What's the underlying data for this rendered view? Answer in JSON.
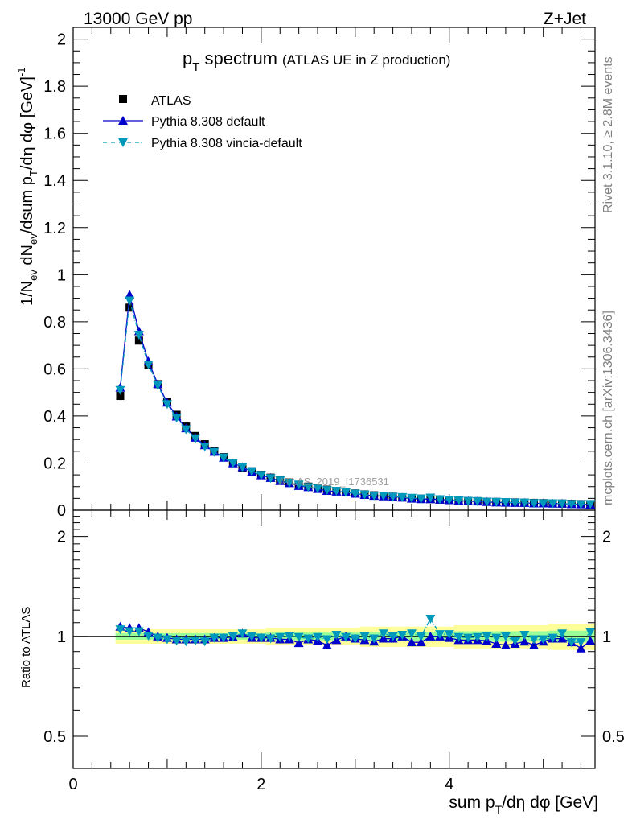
{
  "header": {
    "energy": "13000 GeV pp",
    "process": "Z+Jet"
  },
  "side": {
    "rivet": "Rivet 3.1.10, ≥ 2.8M events",
    "mcplots": "mcplots.cern.ch [arXiv:1306.3436]"
  },
  "watermark": "ATLAS_2019_I1736531",
  "colors": {
    "data": "#000000",
    "default": "#0000cc",
    "vincia": "#0099bb",
    "band_outer": "#ffff99",
    "band_inner": "#99ff99"
  },
  "chart_data": [
    {
      "type": "scatter",
      "title": "p_T spectrum (ATLAS UE in Z production)",
      "title_main": "p",
      "title_sub": "T",
      "title_rest": " spectrum",
      "title_paren": "(ATLAS UE in Z production)",
      "ylabel": "1/N_ev dN_ev/dsum p_T/dη dφ [GeV]^-1",
      "ylim": [
        0,
        2.05
      ],
      "xlim": [
        0,
        5.55
      ],
      "ytick_labels": [
        "0",
        "0.2",
        "0.4",
        "0.6",
        "0.8",
        "1",
        "1.2",
        "1.4",
        "1.6",
        "1.8",
        "2"
      ],
      "legend_position": "top-left",
      "x": [
        0.5,
        0.6,
        0.7,
        0.8,
        0.9,
        1.0,
        1.1,
        1.2,
        1.3,
        1.4,
        1.5,
        1.6,
        1.7,
        1.8,
        1.9,
        2.0,
        2.1,
        2.2,
        2.3,
        2.4,
        2.5,
        2.6,
        2.7,
        2.8,
        2.9,
        3.0,
        3.1,
        3.2,
        3.3,
        3.4,
        3.5,
        3.6,
        3.7,
        3.8,
        3.9,
        4.0,
        4.1,
        4.2,
        4.3,
        4.4,
        4.5,
        4.6,
        4.7,
        4.8,
        4.9,
        5.0,
        5.1,
        5.2,
        5.3,
        5.4,
        5.5
      ],
      "series": [
        {
          "name": "ATLAS",
          "marker": "square",
          "values": [
            0.485,
            0.86,
            0.72,
            0.615,
            0.535,
            0.46,
            0.405,
            0.355,
            0.315,
            0.28,
            0.25,
            0.225,
            0.2,
            0.18,
            0.165,
            0.15,
            0.138,
            0.127,
            0.117,
            0.108,
            0.1,
            0.093,
            0.087,
            0.081,
            0.076,
            0.071,
            0.067,
            0.063,
            0.06,
            0.057,
            0.054,
            0.051,
            0.049,
            0.047,
            0.045,
            0.043,
            0.041,
            0.039,
            0.038,
            0.036,
            0.035,
            0.034,
            0.033,
            0.032,
            0.031,
            0.03,
            0.029,
            0.028,
            0.027,
            0.026,
            0.025
          ]
        },
        {
          "name": "Pythia 8.308 default",
          "marker": "triangle-up",
          "values": [
            0.52,
            0.915,
            0.76,
            0.632,
            0.536,
            0.457,
            0.398,
            0.348,
            0.308,
            0.276,
            0.248,
            0.223,
            0.199,
            0.183,
            0.163,
            0.148,
            0.137,
            0.124,
            0.115,
            0.103,
            0.098,
            0.09,
            0.082,
            0.079,
            0.076,
            0.07,
            0.065,
            0.061,
            0.059,
            0.056,
            0.054,
            0.049,
            0.047,
            0.047,
            0.045,
            0.043,
            0.04,
            0.038,
            0.037,
            0.035,
            0.033,
            0.032,
            0.031,
            0.031,
            0.029,
            0.029,
            0.028,
            0.028,
            0.026,
            0.025,
            0.024
          ]
        },
        {
          "name": "Pythia 8.308 vincia-default",
          "marker": "triangle-down",
          "values": [
            0.51,
            0.89,
            0.745,
            0.618,
            0.53,
            0.45,
            0.392,
            0.343,
            0.305,
            0.27,
            0.247,
            0.223,
            0.2,
            0.183,
            0.165,
            0.149,
            0.136,
            0.126,
            0.116,
            0.108,
            0.098,
            0.092,
            0.085,
            0.082,
            0.076,
            0.07,
            0.066,
            0.062,
            0.061,
            0.057,
            0.055,
            0.052,
            0.049,
            0.053,
            0.046,
            0.044,
            0.041,
            0.039,
            0.038,
            0.036,
            0.035,
            0.034,
            0.032,
            0.032,
            0.03,
            0.029,
            0.029,
            0.028,
            0.026,
            0.025,
            0.026
          ]
        }
      ]
    },
    {
      "type": "line",
      "ylabel": "Ratio to ATLAS",
      "xlabel": "sum p_T/dη dφ [GeV]",
      "xlabel_main": "sum p",
      "xlabel_sub": "T",
      "xlabel_rest": "/dη dφ [GeV]",
      "ylim": [
        0.4,
        2.4
      ],
      "yscale": "log",
      "xlim": [
        0,
        5.55
      ],
      "ytick_labels": [
        "0.5",
        "1",
        "2"
      ],
      "xtick_labels": [
        "0",
        "2",
        "4"
      ],
      "x": [
        0.5,
        0.6,
        0.7,
        0.8,
        0.9,
        1.0,
        1.1,
        1.2,
        1.3,
        1.4,
        1.5,
        1.6,
        1.7,
        1.8,
        1.9,
        2.0,
        2.1,
        2.2,
        2.3,
        2.4,
        2.5,
        2.6,
        2.7,
        2.8,
        2.9,
        3.0,
        3.1,
        3.2,
        3.3,
        3.4,
        3.5,
        3.6,
        3.7,
        3.8,
        3.9,
        4.0,
        4.1,
        4.2,
        4.3,
        4.4,
        4.5,
        4.6,
        4.7,
        4.8,
        4.9,
        5.0,
        5.1,
        5.2,
        5.3,
        5.4,
        5.5
      ],
      "band_half_width": [
        0.05,
        0.05,
        0.05,
        0.05,
        0.05,
        0.05,
        0.05,
        0.05,
        0.05,
        0.05,
        0.05,
        0.05,
        0.05,
        0.05,
        0.05,
        0.05,
        0.06,
        0.06,
        0.06,
        0.06,
        0.06,
        0.06,
        0.06,
        0.06,
        0.06,
        0.06,
        0.07,
        0.07,
        0.07,
        0.07,
        0.07,
        0.07,
        0.07,
        0.07,
        0.07,
        0.07,
        0.08,
        0.08,
        0.08,
        0.08,
        0.08,
        0.08,
        0.08,
        0.08,
        0.08,
        0.08,
        0.09,
        0.09,
        0.09,
        0.09,
        0.09
      ],
      "series": [
        {
          "name": "Pythia 8.308 default",
          "values": [
            1.07,
            1.06,
            1.06,
            1.03,
            1.0,
            0.99,
            0.98,
            0.98,
            0.98,
            0.98,
            0.99,
            0.99,
            0.995,
            1.02,
            0.99,
            0.99,
            0.99,
            0.98,
            0.98,
            0.955,
            0.98,
            0.97,
            0.94,
            0.975,
            1.0,
            0.985,
            0.975,
            0.965,
            0.985,
            0.985,
            1.0,
            0.96,
            0.96,
            1.0,
            1.0,
            0.99,
            0.975,
            0.975,
            0.975,
            0.97,
            0.95,
            0.94,
            0.95,
            0.965,
            0.94,
            0.965,
            0.985,
            0.985,
            0.96,
            0.92,
            0.97
          ]
        },
        {
          "name": "Pythia 8.308 vincia-default",
          "values": [
            1.05,
            1.035,
            1.035,
            1.005,
            0.99,
            0.98,
            0.97,
            0.965,
            0.97,
            0.965,
            0.99,
            0.99,
            1.0,
            1.02,
            1.0,
            0.99,
            0.985,
            0.995,
            1.0,
            0.995,
            0.985,
            0.995,
            0.98,
            1.01,
            0.995,
            0.985,
            1.0,
            0.985,
            1.02,
            1.0,
            1.01,
            1.02,
            1.0,
            1.13,
            1.015,
            1.015,
            0.995,
            0.99,
            0.995,
            1.0,
            0.99,
            1.0,
            0.97,
            1.01,
            0.98,
            0.98,
            0.99,
            1.02,
            0.96,
            0.96,
            1.03
          ]
        }
      ]
    }
  ]
}
